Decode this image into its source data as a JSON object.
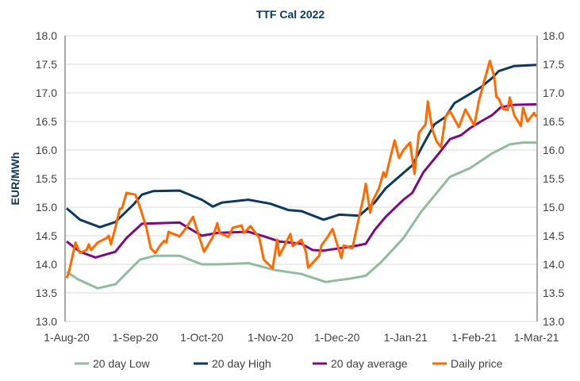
{
  "chart_data": {
    "type": "line",
    "title": "TTF Cal 2022",
    "ylabel": "EUR/MWh",
    "xlabel": "",
    "ylim": [
      13.0,
      18.0
    ],
    "yticks": [
      "13.0",
      "13.5",
      "14.0",
      "14.5",
      "15.0",
      "15.5",
      "16.0",
      "16.5",
      "17.0",
      "17.5",
      "18.0"
    ],
    "secondary_yticks": [
      "13.0",
      "13.5",
      "14.0",
      "14.5",
      "15.0",
      "15.5",
      "16.0",
      "16.5",
      "17.0",
      "17.5",
      "18.0"
    ],
    "xlim": [
      "2020-08-01",
      "2021-03-01"
    ],
    "xticks": [
      {
        "date": "2020-08-01",
        "label": "1-Aug-20"
      },
      {
        "date": "2020-09-01",
        "label": "1-Sep-20"
      },
      {
        "date": "2020-10-01",
        "label": "1-Oct-20"
      },
      {
        "date": "2020-11-01",
        "label": "1-Nov-20"
      },
      {
        "date": "2020-12-01",
        "label": "1-Dec-20"
      },
      {
        "date": "2021-01-01",
        "label": "1-Jan-21"
      },
      {
        "date": "2021-02-01",
        "label": "1-Feb-21"
      },
      {
        "date": "2021-03-01",
        "label": "1-Mar-21"
      }
    ],
    "grid": "horizontal",
    "legend_position": "bottom",
    "series": [
      {
        "name": "20 day Low",
        "color": "#8fbc9f",
        "points": [
          [
            "2020-08-01",
            13.87
          ],
          [
            "2020-08-06",
            13.74
          ],
          [
            "2020-08-15",
            13.58
          ],
          [
            "2020-08-23",
            13.65
          ],
          [
            "2020-09-03",
            14.08
          ],
          [
            "2020-09-10",
            14.15
          ],
          [
            "2020-09-21",
            14.15
          ],
          [
            "2020-10-01",
            14.0
          ],
          [
            "2020-10-08",
            14.0
          ],
          [
            "2020-10-22",
            14.02
          ],
          [
            "2020-11-03",
            13.9
          ],
          [
            "2020-11-15",
            13.83
          ],
          [
            "2020-11-26",
            13.69
          ],
          [
            "2020-12-01",
            13.72
          ],
          [
            "2020-12-07",
            13.75
          ],
          [
            "2020-12-14",
            13.8
          ],
          [
            "2020-12-21",
            14.04
          ],
          [
            "2020-12-31",
            14.46
          ],
          [
            "2021-01-08",
            14.92
          ],
          [
            "2021-01-14",
            15.2
          ],
          [
            "2021-01-21",
            15.53
          ],
          [
            "2021-01-30",
            15.68
          ],
          [
            "2021-02-09",
            15.94
          ],
          [
            "2021-02-17",
            16.1
          ],
          [
            "2021-02-23",
            16.13
          ],
          [
            "2021-03-01",
            16.13
          ]
        ]
      },
      {
        "name": "20 day High",
        "color": "#0d3a5c",
        "points": [
          [
            "2020-08-01",
            14.98
          ],
          [
            "2020-08-07",
            14.78
          ],
          [
            "2020-08-16",
            14.65
          ],
          [
            "2020-08-23",
            14.74
          ],
          [
            "2020-08-31",
            15.04
          ],
          [
            "2020-09-04",
            15.22
          ],
          [
            "2020-09-09",
            15.28
          ],
          [
            "2020-09-21",
            15.29
          ],
          [
            "2020-10-01",
            15.13
          ],
          [
            "2020-10-06",
            15.01
          ],
          [
            "2020-10-10",
            15.08
          ],
          [
            "2020-10-22",
            15.13
          ],
          [
            "2020-11-01",
            15.06
          ],
          [
            "2020-11-09",
            14.95
          ],
          [
            "2020-11-15",
            14.93
          ],
          [
            "2020-11-25",
            14.78
          ],
          [
            "2020-12-02",
            14.87
          ],
          [
            "2020-12-11",
            14.85
          ],
          [
            "2020-12-18",
            15.08
          ],
          [
            "2020-12-23",
            15.33
          ],
          [
            "2020-12-31",
            15.6
          ],
          [
            "2021-01-04",
            15.73
          ],
          [
            "2021-01-09",
            16.1
          ],
          [
            "2021-01-14",
            16.45
          ],
          [
            "2021-01-19",
            16.58
          ],
          [
            "2021-01-23",
            16.82
          ],
          [
            "2021-01-30",
            16.98
          ],
          [
            "2021-02-04",
            17.1
          ],
          [
            "2021-02-09",
            17.26
          ],
          [
            "2021-02-12",
            17.38
          ],
          [
            "2021-02-19",
            17.47
          ],
          [
            "2021-03-01",
            17.49
          ]
        ]
      },
      {
        "name": "20 day average",
        "color": "#7b0c7e",
        "points": [
          [
            "2020-08-01",
            14.4
          ],
          [
            "2020-08-07",
            14.22
          ],
          [
            "2020-08-14",
            14.12
          ],
          [
            "2020-08-23",
            14.22
          ],
          [
            "2020-08-28",
            14.46
          ],
          [
            "2020-09-04",
            14.71
          ],
          [
            "2020-09-21",
            14.73
          ],
          [
            "2020-10-01",
            14.5
          ],
          [
            "2020-10-08",
            14.55
          ],
          [
            "2020-10-22",
            14.57
          ],
          [
            "2020-10-29",
            14.49
          ],
          [
            "2020-11-05",
            14.4
          ],
          [
            "2020-11-15",
            14.36
          ],
          [
            "2020-11-20",
            14.25
          ],
          [
            "2020-11-25",
            14.24
          ],
          [
            "2020-12-09",
            14.32
          ],
          [
            "2020-12-14",
            14.36
          ],
          [
            "2020-12-18",
            14.6
          ],
          [
            "2020-12-23",
            14.83
          ],
          [
            "2020-12-31",
            15.13
          ],
          [
            "2021-01-04",
            15.25
          ],
          [
            "2021-01-09",
            15.61
          ],
          [
            "2021-01-16",
            15.94
          ],
          [
            "2021-01-21",
            16.19
          ],
          [
            "2021-01-26",
            16.26
          ],
          [
            "2021-01-30",
            16.38
          ],
          [
            "2021-02-04",
            16.5
          ],
          [
            "2021-02-09",
            16.61
          ],
          [
            "2021-02-13",
            16.75
          ],
          [
            "2021-02-19",
            16.79
          ],
          [
            "2021-03-01",
            16.8
          ]
        ]
      },
      {
        "name": "Daily price",
        "color": "#ff6a00",
        "points": [
          [
            "2020-08-01",
            13.76
          ],
          [
            "2020-08-02",
            13.86
          ],
          [
            "2020-08-05",
            14.38
          ],
          [
            "2020-08-07",
            14.2
          ],
          [
            "2020-08-10",
            14.25
          ],
          [
            "2020-08-11",
            14.35
          ],
          [
            "2020-08-12",
            14.25
          ],
          [
            "2020-08-15",
            14.38
          ],
          [
            "2020-08-19",
            14.46
          ],
          [
            "2020-08-20",
            14.5
          ],
          [
            "2020-08-21",
            14.35
          ],
          [
            "2020-08-23",
            14.64
          ],
          [
            "2020-08-25",
            14.97
          ],
          [
            "2020-08-26",
            14.98
          ],
          [
            "2020-08-28",
            15.25
          ],
          [
            "2020-09-01",
            15.22
          ],
          [
            "2020-09-03",
            15.01
          ],
          [
            "2020-09-06",
            14.64
          ],
          [
            "2020-09-08",
            14.28
          ],
          [
            "2020-09-10",
            14.2
          ],
          [
            "2020-09-12",
            14.32
          ],
          [
            "2020-09-14",
            14.41
          ],
          [
            "2020-09-15",
            14.38
          ],
          [
            "2020-09-16",
            14.57
          ],
          [
            "2020-09-17",
            14.55
          ],
          [
            "2020-09-21",
            14.49
          ],
          [
            "2020-09-24",
            14.64
          ],
          [
            "2020-09-27",
            14.83
          ],
          [
            "2020-10-02",
            14.22
          ],
          [
            "2020-10-06",
            14.48
          ],
          [
            "2020-10-08",
            14.72
          ],
          [
            "2020-10-09",
            14.55
          ],
          [
            "2020-10-13",
            14.48
          ],
          [
            "2020-10-15",
            14.64
          ],
          [
            "2020-10-19",
            14.68
          ],
          [
            "2020-10-20",
            14.55
          ],
          [
            "2020-10-23",
            14.67
          ],
          [
            "2020-10-27",
            14.46
          ],
          [
            "2020-10-29",
            14.08
          ],
          [
            "2020-11-02",
            13.93
          ],
          [
            "2020-11-04",
            14.43
          ],
          [
            "2020-11-05",
            14.15
          ],
          [
            "2020-11-10",
            14.53
          ],
          [
            "2020-11-11",
            14.32
          ],
          [
            "2020-11-15",
            14.43
          ],
          [
            "2020-11-17",
            14.22
          ],
          [
            "2020-11-18",
            13.94
          ],
          [
            "2020-11-23",
            14.15
          ],
          [
            "2020-11-24",
            14.33
          ],
          [
            "2020-11-27",
            14.49
          ],
          [
            "2020-11-29",
            14.62
          ],
          [
            "2020-12-03",
            14.11
          ],
          [
            "2020-12-04",
            14.33
          ],
          [
            "2020-12-08",
            14.28
          ],
          [
            "2020-12-11",
            14.83
          ],
          [
            "2020-12-13",
            15.18
          ],
          [
            "2020-12-14",
            15.41
          ],
          [
            "2020-12-16",
            14.9
          ],
          [
            "2020-12-17",
            15.1
          ],
          [
            "2020-12-20",
            15.33
          ],
          [
            "2020-12-22",
            15.61
          ],
          [
            "2020-12-23",
            15.53
          ],
          [
            "2020-12-27",
            16.17
          ],
          [
            "2020-12-29",
            15.86
          ],
          [
            "2020-12-31",
            16.0
          ],
          [
            "2021-01-03",
            16.13
          ],
          [
            "2021-01-05",
            15.58
          ],
          [
            "2021-01-07",
            16.3
          ],
          [
            "2021-01-10",
            16.45
          ],
          [
            "2021-01-11",
            16.85
          ],
          [
            "2021-01-13",
            16.36
          ],
          [
            "2021-01-15",
            16.15
          ],
          [
            "2021-01-17",
            16.05
          ],
          [
            "2021-01-19",
            16.58
          ],
          [
            "2021-01-21",
            16.68
          ],
          [
            "2021-01-25",
            16.4
          ],
          [
            "2021-01-28",
            16.71
          ],
          [
            "2021-02-01",
            16.43
          ],
          [
            "2021-02-03",
            16.85
          ],
          [
            "2021-02-05",
            17.14
          ],
          [
            "2021-02-08",
            17.56
          ],
          [
            "2021-02-10",
            17.28
          ],
          [
            "2021-02-11",
            16.93
          ],
          [
            "2021-02-12",
            16.9
          ],
          [
            "2021-02-14",
            16.72
          ],
          [
            "2021-02-16",
            16.7
          ],
          [
            "2021-02-17",
            16.92
          ],
          [
            "2021-02-19",
            16.61
          ],
          [
            "2021-02-22",
            16.42
          ],
          [
            "2021-02-23",
            16.74
          ],
          [
            "2021-02-25",
            16.5
          ],
          [
            "2021-02-28",
            16.65
          ],
          [
            "2021-03-01",
            16.58
          ]
        ]
      }
    ]
  }
}
